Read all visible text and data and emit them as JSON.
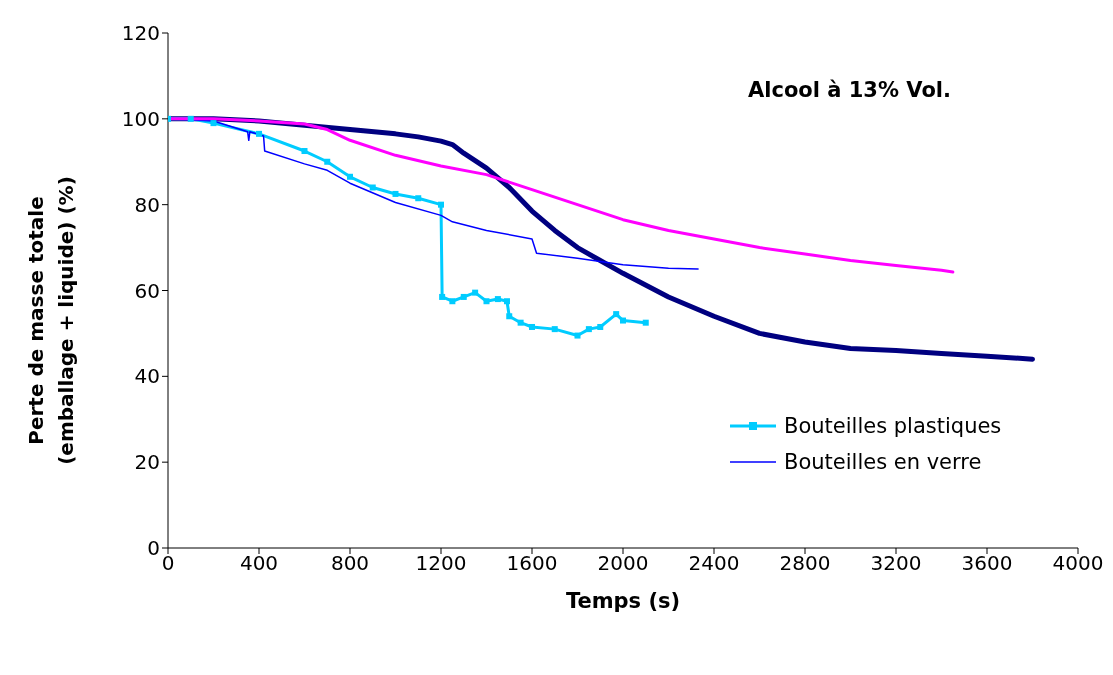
{
  "chart_data": {
    "type": "line",
    "xlabel": "Temps (s)",
    "ylabel": "Perte de masse totale\n(emballage + liquide) (%)",
    "annotations": [
      "Alcool à 13% Vol."
    ],
    "xlim": [
      0,
      4000
    ],
    "xticks": [
      0,
      400,
      800,
      1200,
      1600,
      2000,
      2400,
      2800,
      3200,
      3600,
      4000
    ],
    "ylim": [
      0,
      120
    ],
    "yticks": [
      0,
      20,
      40,
      60,
      80,
      100,
      120
    ],
    "grid": false,
    "legend": "bottom right",
    "line_style": "solid",
    "series": [
      {
        "color": "#000080",
        "x": [
          0,
          200,
          400,
          600,
          800,
          1000,
          1100,
          1200,
          1250,
          1300,
          1400,
          1500,
          1600,
          1700,
          1800,
          1900,
          2000,
          2200,
          2400,
          2600,
          2800,
          3000,
          3200,
          3400,
          3600,
          3800
        ],
        "values": [
          100,
          100,
          99.5,
          98.5,
          97.5,
          96.5,
          95.8,
          94.8,
          94,
          92,
          88.5,
          84,
          78.5,
          74,
          70,
          67,
          64,
          58.5,
          54,
          50,
          48,
          46.5,
          46,
          45.3,
          44.7,
          44
        ]
      },
      {
        "name": "Bouteilles plastiques",
        "color": "#00ccff",
        "marker": "square",
        "x": [
          0,
          100,
          200,
          400,
          600,
          700,
          800,
          900,
          1000,
          1100,
          1200,
          1205,
          1250,
          1300,
          1350,
          1400,
          1450,
          1490,
          1500,
          1550,
          1600,
          1700,
          1800,
          1850,
          1900,
          1970,
          2000,
          2100
        ],
        "values": [
          100,
          100,
          99,
          96.5,
          92.5,
          90,
          86.5,
          84,
          82.5,
          81.5,
          80,
          58.5,
          57.5,
          58.5,
          59.5,
          57.5,
          58,
          57.5,
          54,
          52.5,
          51.5,
          51,
          49.5,
          51,
          51.5,
          54.5,
          53,
          52.5
        ]
      },
      {
        "name": "Bouteilles en verre",
        "color": "#0000ff",
        "x": [
          0,
          200,
          350,
          355,
          360,
          420,
          425,
          600,
          700,
          800,
          1000,
          1200,
          1250,
          1400,
          1600,
          1620,
          1800,
          2000,
          2200,
          2330
        ],
        "values": [
          100,
          99.5,
          97,
          95,
          97,
          96,
          92.5,
          89.5,
          88,
          85,
          80.5,
          77.5,
          76,
          74,
          72,
          68.7,
          67.5,
          66,
          65.2,
          65
        ]
      },
      {
        "color": "#ff00ff",
        "x": [
          0,
          200,
          400,
          600,
          700,
          800,
          1000,
          1200,
          1400,
          1600,
          1800,
          2000,
          2200,
          2400,
          2600,
          2800,
          3000,
          3200,
          3400,
          3450
        ],
        "values": [
          100,
          100,
          99.5,
          98.8,
          97.5,
          95,
          91.5,
          89,
          87,
          83.5,
          80,
          76.5,
          74,
          72,
          70,
          68.5,
          67,
          65.8,
          64.7,
          64.3
        ]
      }
    ]
  }
}
